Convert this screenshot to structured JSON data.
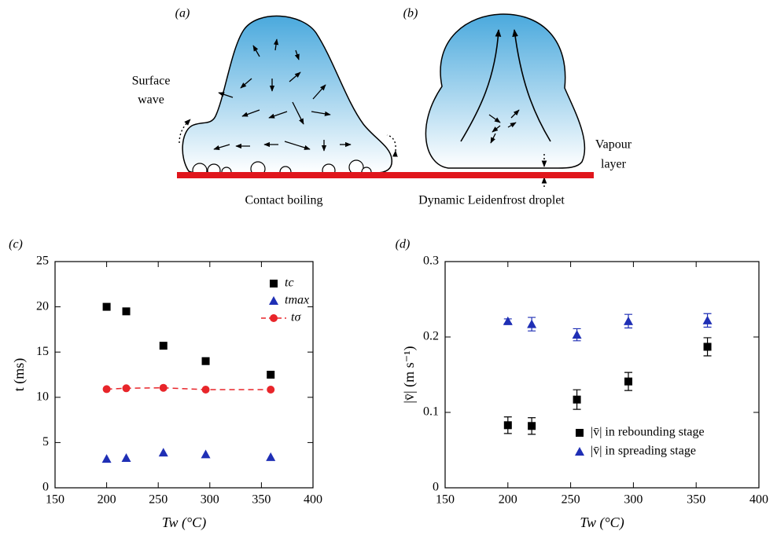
{
  "figure": {
    "labels": [
      "(a)",
      "(b)",
      "(c)",
      "(d)"
    ],
    "diagram": {
      "surface_wave": [
        "Surface",
        "wave"
      ],
      "vapour_layer": [
        "Vapour",
        "layer"
      ],
      "caption_a": "Contact boiling",
      "caption_b": "Dynamic Leidenfrost droplet"
    }
  },
  "chart_data": [
    {
      "type": "scatter",
      "xlabel": "Tw (°C)",
      "ylabel": "t (ms)",
      "xlim": [
        150,
        400
      ],
      "xticks": [
        150,
        200,
        250,
        300,
        350,
        400
      ],
      "ylim": [
        0,
        25
      ],
      "yticks": [
        0,
        5,
        10,
        15,
        20,
        25
      ],
      "legend": "upper right",
      "series": [
        {
          "name": "tc",
          "color": "#000000",
          "marker": "square",
          "x": [
            200,
            219,
            255,
            296,
            359
          ],
          "values": [
            20,
            19.5,
            15.7,
            14,
            12.5
          ]
        },
        {
          "name": "tmax",
          "color": "#1f2fb5",
          "marker": "triangle",
          "x": [
            200,
            219,
            255,
            296,
            359
          ],
          "values": [
            3.2,
            3.3,
            3.9,
            3.7,
            3.4
          ]
        },
        {
          "name": "tσ",
          "color": "#e8252a",
          "marker": "circle",
          "linestyle": "dashed",
          "x": [
            200,
            219,
            255,
            296,
            359
          ],
          "values": [
            10.9,
            11,
            11.05,
            10.85,
            10.85
          ]
        }
      ]
    },
    {
      "type": "scatter",
      "xlabel": "Tw (°C)",
      "ylabel": "|v̄| (m s⁻¹)",
      "xlim": [
        150,
        400
      ],
      "xticks": [
        150,
        200,
        250,
        300,
        350,
        400
      ],
      "ylim": [
        0,
        0.3
      ],
      "yticks": [
        0,
        0.1,
        0.2,
        0.3
      ],
      "legend": "lower right",
      "series": [
        {
          "name": "|v̄| in rebounding stage",
          "color": "#000000",
          "marker": "square",
          "x": [
            200,
            219,
            255,
            296,
            359
          ],
          "values": [
            0.083,
            0.082,
            0.117,
            0.141,
            0.187
          ],
          "errors": [
            0.011,
            0.011,
            0.013,
            0.012,
            0.012
          ]
        },
        {
          "name": "|v̄| in spreading stage",
          "color": "#1f2fb5",
          "marker": "triangle",
          "x": [
            200,
            219,
            255,
            296,
            359
          ],
          "values": [
            0.221,
            0.217,
            0.203,
            0.221,
            0.222
          ],
          "errors": [
            0.003,
            0.009,
            0.008,
            0.009,
            0.009
          ]
        }
      ]
    }
  ]
}
